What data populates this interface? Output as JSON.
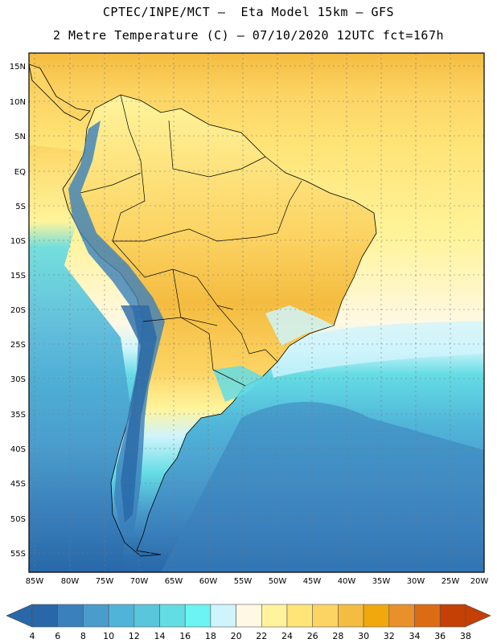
{
  "header": {
    "title_line1": "CPTEC/INPE/MCT –  Eta Model 15km – GFS",
    "title_line2": "2 Metre Temperature (C) – 07/10/2020 12UTC fct=167h"
  },
  "map": {
    "lat_labels": [
      "15N",
      "10N",
      "5N",
      "EQ",
      "5S",
      "10S",
      "15S",
      "20S",
      "25S",
      "30S",
      "35S",
      "40S",
      "45S",
      "50S",
      "55S"
    ],
    "lon_labels": [
      "85W",
      "80W",
      "75W",
      "70W",
      "65W",
      "60W",
      "55W",
      "50W",
      "45W",
      "40W",
      "35W",
      "30W",
      "25W",
      "20W"
    ],
    "lon_range": [
      -85,
      -20
    ],
    "lat_range": [
      -58,
      16
    ],
    "grid": true
  },
  "colorbar": {
    "labels": [
      "4",
      "6",
      "8",
      "10",
      "12",
      "14",
      "16",
      "18",
      "20",
      "22",
      "24",
      "26",
      "28",
      "30",
      "32",
      "34",
      "36",
      "38"
    ],
    "colors": [
      "#2868a8",
      "#3a80bc",
      "#4a9ccc",
      "#50b4d8",
      "#5ac6dc",
      "#64dce4",
      "#6cf4f4",
      "#cff4fc",
      "#fff8e4",
      "#fff49c",
      "#ffe478",
      "#fcd464",
      "#f4bc40",
      "#f0a80c",
      "#e8902c",
      "#dc6c14",
      "#c44004"
    ],
    "under_color": "#2868a8",
    "over_color": "#c44004"
  }
}
